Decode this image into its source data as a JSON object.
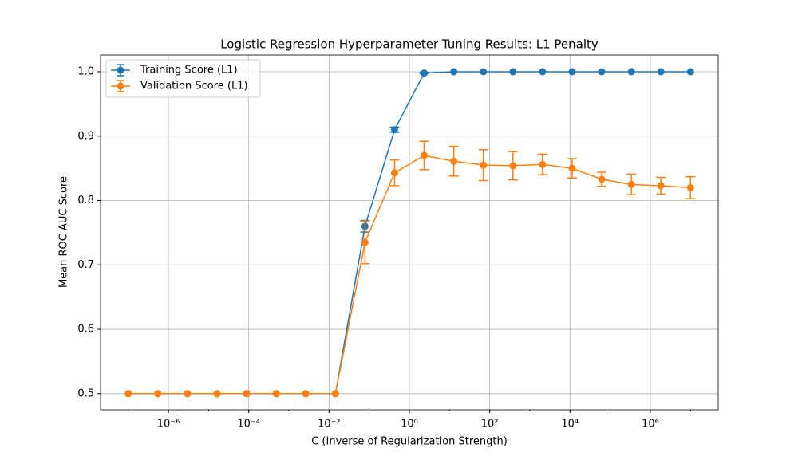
{
  "chart_data": {
    "type": "errorbar-line",
    "title": "Logistic Regression Hyperparameter Tuning Results: L1 Penalty",
    "x_label": "C (Inverse of Regularization Strength)",
    "y_label": "Mean ROC AUC Score",
    "x": [
      1e-07,
      5.456e-07,
      2.976e-06,
      1.624e-05,
      8.859e-05,
      0.0004833,
      0.002637,
      0.01438,
      0.07848,
      0.4281,
      2.336,
      12.74,
      69.52,
      379.3,
      2069,
      11288,
      61585,
      335982,
      1832981,
      10000000.0
    ],
    "series": [
      {
        "name": "Training Score (L1)",
        "color": "#1f77b4",
        "values": [
          0.5,
          0.5,
          0.5,
          0.5,
          0.5,
          0.5,
          0.5,
          0.5,
          0.76,
          0.91,
          0.998,
          1.0,
          1.0,
          1.0,
          1.0,
          1.0,
          1.0,
          1.0,
          1.0,
          1.0
        ],
        "errors": [
          0,
          0,
          0,
          0,
          0,
          0,
          0,
          0,
          0.009,
          0.004,
          0.001,
          0,
          0,
          0,
          0,
          0,
          0,
          0,
          0,
          0
        ]
      },
      {
        "name": "Validation Score (L1)",
        "color": "#ff7f0e",
        "values": [
          0.5,
          0.5,
          0.5,
          0.5,
          0.5,
          0.5,
          0.5,
          0.5,
          0.735,
          0.843,
          0.87,
          0.861,
          0.855,
          0.854,
          0.856,
          0.85,
          0.833,
          0.825,
          0.823,
          0.82
        ],
        "errors": [
          0,
          0,
          0,
          0,
          0,
          0,
          0,
          0,
          0.033,
          0.02,
          0.022,
          0.023,
          0.024,
          0.022,
          0.016,
          0.015,
          0.011,
          0.016,
          0.013,
          0.017
        ]
      }
    ],
    "x_log": true,
    "xlim": [
      2.04e-08,
      49000000.0
    ],
    "ylim": [
      0.475,
      1.026
    ],
    "xticks": [
      {
        "value": 1e-06,
        "label": "10⁻⁶"
      },
      {
        "value": 0.0001,
        "label": "10⁻⁴"
      },
      {
        "value": 0.01,
        "label": "10⁻²"
      },
      {
        "value": 1,
        "label": "10⁰"
      },
      {
        "value": 100,
        "label": "10²"
      },
      {
        "value": 10000,
        "label": "10⁴"
      },
      {
        "value": 1000000,
        "label": "10⁶"
      }
    ],
    "yticks": [
      0.5,
      0.6,
      0.7,
      0.8,
      0.9,
      {
        "value": 1,
        "label": "1.0"
      }
    ],
    "grid": true,
    "legend": "upper-left"
  }
}
